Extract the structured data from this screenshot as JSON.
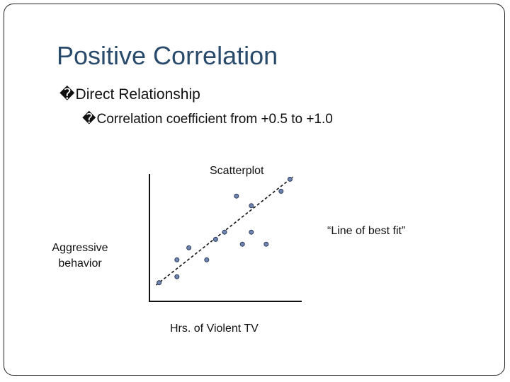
{
  "slide": {
    "title": "Positive Correlation",
    "bullet_marker": "�",
    "bullet1": "Direct Relationship",
    "bullet2": "Correlation coefficient from +0.5 to +1.0"
  },
  "chart_data": {
    "type": "scatter",
    "title": "Scatterplot",
    "xlabel": "Hrs. of Violent TV",
    "ylabel": "Aggressive behavior",
    "annotation": "“Line of best fit”",
    "xlim": [
      0,
      10
    ],
    "ylim": [
      0,
      10
    ],
    "grid": false,
    "points": [
      {
        "x": 0.6,
        "y": 1.2
      },
      {
        "x": 1.8,
        "y": 1.7
      },
      {
        "x": 1.8,
        "y": 3.1
      },
      {
        "x": 2.6,
        "y": 4.1
      },
      {
        "x": 3.8,
        "y": 3.1
      },
      {
        "x": 4.4,
        "y": 4.8
      },
      {
        "x": 5.0,
        "y": 5.4
      },
      {
        "x": 5.8,
        "y": 8.4
      },
      {
        "x": 6.2,
        "y": 4.4
      },
      {
        "x": 6.8,
        "y": 7.6
      },
      {
        "x": 6.8,
        "y": 5.4
      },
      {
        "x": 7.8,
        "y": 4.4
      },
      {
        "x": 8.8,
        "y": 8.8
      },
      {
        "x": 9.4,
        "y": 9.8
      }
    ],
    "fit_line": {
      "x1": 0.4,
      "y1": 1.0,
      "x2": 9.6,
      "y2": 10.0
    },
    "colors": {
      "point_fill": "#6f86b0",
      "point_stroke": "#2a3a5a",
      "axis": "#111111",
      "fit_line": "#111111"
    }
  }
}
